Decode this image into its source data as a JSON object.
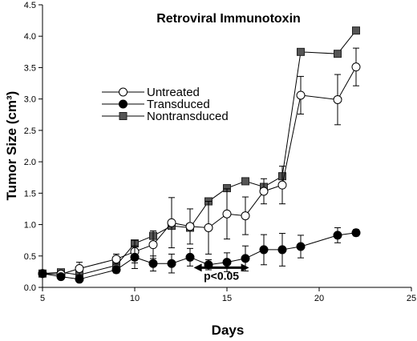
{
  "chart_data": {
    "type": "line",
    "title": "Retroviral Immunotoxin",
    "xlabel": "Days",
    "ylabel": "Tumor Size (cm³)",
    "xlim": [
      5,
      25
    ],
    "ylim": [
      0,
      4.5
    ],
    "xticks": [
      5,
      10,
      15,
      20,
      25
    ],
    "yticks": [
      0.0,
      0.5,
      1.0,
      1.5,
      2.0,
      2.5,
      3.0,
      3.5,
      4.0,
      4.5
    ],
    "ytick_labels": [
      "0.0",
      "0.5",
      "1.0",
      "1.5",
      "2.0",
      "2.5",
      "3.0",
      "3.5",
      "4.0",
      "4.5"
    ],
    "xtick_labels": [
      "5",
      "10",
      "15",
      "20",
      "25"
    ],
    "grid": false,
    "legend_position": "upper-left",
    "series": [
      {
        "name": "Untreated",
        "marker": "open-circle",
        "x": [
          5,
          6,
          7,
          9,
          10,
          11,
          12,
          13,
          14,
          15,
          16,
          17,
          18,
          19,
          21,
          22
        ],
        "y": [
          0.22,
          0.21,
          0.3,
          0.45,
          0.57,
          0.68,
          1.03,
          0.97,
          0.95,
          1.17,
          1.14,
          1.53,
          1.63,
          3.06,
          2.99,
          3.51
        ],
        "err": [
          0.02,
          0.02,
          0.1,
          0.08,
          0.18,
          0.22,
          0.4,
          0.28,
          0.42,
          0.4,
          0.3,
          0.2,
          0.3,
          0.3,
          0.4,
          0.3
        ]
      },
      {
        "name": "Transduced",
        "marker": "filled-circle",
        "x": [
          5,
          6,
          7,
          9,
          10,
          11,
          12,
          13,
          14,
          15,
          16,
          17,
          18,
          19,
          21,
          22
        ],
        "y": [
          0.22,
          0.17,
          0.13,
          0.28,
          0.48,
          0.38,
          0.38,
          0.48,
          0.36,
          0.4,
          0.46,
          0.6,
          0.6,
          0.65,
          0.83,
          0.87
        ],
        "err": [
          0.02,
          0.02,
          0.03,
          0.05,
          0.18,
          0.12,
          0.15,
          0.14,
          0.08,
          0.15,
          0.2,
          0.24,
          0.26,
          0.18,
          0.12,
          0.05
        ]
      },
      {
        "name": "Nontransduced",
        "marker": "filled-square",
        "x": [
          5,
          6,
          7,
          9,
          10,
          11,
          12,
          13,
          14,
          15,
          16,
          17,
          18,
          19,
          21,
          22
        ],
        "y": [
          0.22,
          0.24,
          0.2,
          0.35,
          0.7,
          0.82,
          0.98,
          0.95,
          1.37,
          1.58,
          1.69,
          1.6,
          1.77,
          3.75,
          3.72,
          4.09
        ],
        "err": [
          0,
          0,
          0,
          0,
          0,
          0,
          0,
          0,
          0,
          0,
          0,
          0,
          0,
          0,
          0,
          0
        ]
      }
    ],
    "annotations": [
      {
        "text": "p<0.05",
        "x_from": 13.2,
        "x_to": 16.2,
        "y": 0.48
      }
    ]
  }
}
